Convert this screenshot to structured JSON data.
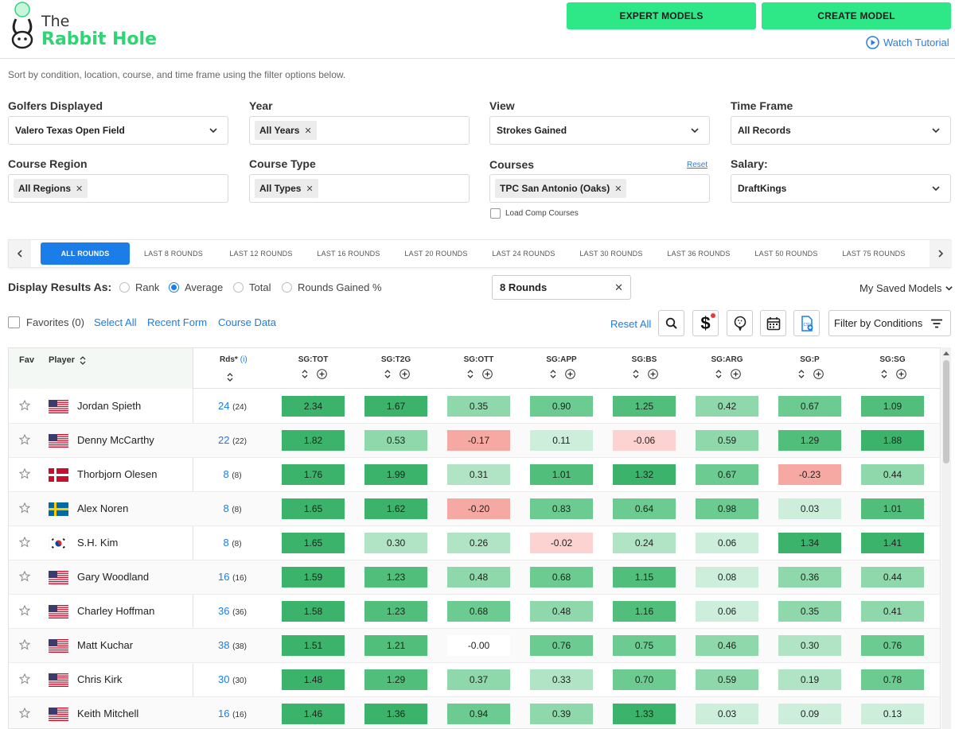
{
  "brand": {
    "line1": "The",
    "line2": "Rabbit Hole"
  },
  "header": {
    "expert_label": "EXPERT MODELS",
    "create_label": "CREATE MODEL",
    "watch_label": "Watch Tutorial"
  },
  "subtitle": "Sort by condition, location, course, and time frame using the filter options below.",
  "filters": {
    "golfers": {
      "label": "Golfers Displayed",
      "value": "Valero Texas Open Field"
    },
    "year": {
      "label": "Year",
      "chip": "All Years"
    },
    "view": {
      "label": "View",
      "value": "Strokes Gained"
    },
    "timeframe": {
      "label": "Time Frame",
      "value": "All Records"
    },
    "region": {
      "label": "Course Region",
      "chip": "All Regions"
    },
    "type": {
      "label": "Course Type",
      "chip": "All Types"
    },
    "courses": {
      "label": "Courses",
      "reset": "Reset",
      "chip": "TPC San Antonio (Oaks)",
      "comp": "Load Comp Courses"
    },
    "salary": {
      "label": "Salary:",
      "value": "DraftKings"
    }
  },
  "tabs": [
    "ALL ROUNDS",
    "LAST 8 ROUNDS",
    "LAST 12 ROUNDS",
    "LAST 16 ROUNDS",
    "LAST 20 ROUNDS",
    "LAST 24 ROUNDS",
    "LAST 30 ROUNDS",
    "LAST 36 ROUNDS",
    "LAST 50 ROUNDS",
    "LAST 75 ROUNDS"
  ],
  "display": {
    "label": "Display Results As:",
    "options": [
      "Rank",
      "Average",
      "Total",
      "Rounds Gained %"
    ],
    "selected": "Average",
    "rounds_value": "8 Rounds",
    "saved": "My Saved Models"
  },
  "toolbar": {
    "favorites": "Favorites (0)",
    "select_all": "Select All",
    "recent_form": "Recent Form",
    "course_data": "Course Data",
    "reset_all": "Reset All",
    "filter_conditions": "Filter by Conditions"
  },
  "table": {
    "fav_header": "Fav",
    "player_header": "Player",
    "rds_header": "Rds*",
    "rds_info": "(i)",
    "columns": [
      "SG:TOT",
      "SG:T2G",
      "SG:OTT",
      "SG:APP",
      "SG:BS",
      "SG:ARG",
      "SG:P",
      "SG:SG"
    ],
    "rows": [
      {
        "name": "Jordan Spieth",
        "flag": "us",
        "rds": "24",
        "rds_total": "(24)",
        "values": [
          "2.34",
          "1.67",
          "0.35",
          "0.90",
          "1.25",
          "0.42",
          "0.67",
          "1.09"
        ]
      },
      {
        "name": "Denny McCarthy",
        "flag": "us",
        "rds": "22",
        "rds_total": "(22)",
        "values": [
          "1.82",
          "0.53",
          "-0.17",
          "0.11",
          "-0.06",
          "0.59",
          "1.29",
          "1.88"
        ]
      },
      {
        "name": "Thorbjorn Olesen",
        "flag": "dk",
        "rds": "8",
        "rds_total": "(8)",
        "values": [
          "1.76",
          "1.99",
          "0.31",
          "1.01",
          "1.32",
          "0.67",
          "-0.23",
          "0.44"
        ]
      },
      {
        "name": "Alex Noren",
        "flag": "se",
        "rds": "8",
        "rds_total": "(8)",
        "values": [
          "1.65",
          "1.62",
          "-0.20",
          "0.83",
          "0.64",
          "0.98",
          "0.03",
          "1.01"
        ]
      },
      {
        "name": "S.H. Kim",
        "flag": "kr",
        "rds": "8",
        "rds_total": "(8)",
        "values": [
          "1.65",
          "0.30",
          "0.26",
          "-0.02",
          "0.24",
          "0.06",
          "1.34",
          "1.41"
        ]
      },
      {
        "name": "Gary Woodland",
        "flag": "us",
        "rds": "16",
        "rds_total": "(16)",
        "values": [
          "1.59",
          "1.23",
          "0.48",
          "0.68",
          "1.15",
          "0.08",
          "0.36",
          "0.44"
        ]
      },
      {
        "name": "Charley Hoffman",
        "flag": "us",
        "rds": "36",
        "rds_total": "(36)",
        "values": [
          "1.58",
          "1.23",
          "0.68",
          "0.48",
          "1.16",
          "0.06",
          "0.35",
          "0.41"
        ]
      },
      {
        "name": "Matt Kuchar",
        "flag": "us",
        "rds": "38",
        "rds_total": "(38)",
        "values": [
          "1.51",
          "1.21",
          "-0.00",
          "0.76",
          "0.75",
          "0.46",
          "0.30",
          "0.76"
        ]
      },
      {
        "name": "Chris Kirk",
        "flag": "us",
        "rds": "30",
        "rds_total": "(30)",
        "values": [
          "1.48",
          "1.29",
          "0.37",
          "0.33",
          "0.70",
          "0.59",
          "0.19",
          "0.78"
        ]
      },
      {
        "name": "Keith Mitchell",
        "flag": "us",
        "rds": "16",
        "rds_total": "(16)",
        "values": [
          "1.46",
          "1.36",
          "0.94",
          "0.39",
          "1.33",
          "0.03",
          "0.09",
          "0.13"
        ]
      }
    ]
  },
  "colors": {
    "accent": "#1a7de8",
    "brand_green": "#2ee887"
  }
}
